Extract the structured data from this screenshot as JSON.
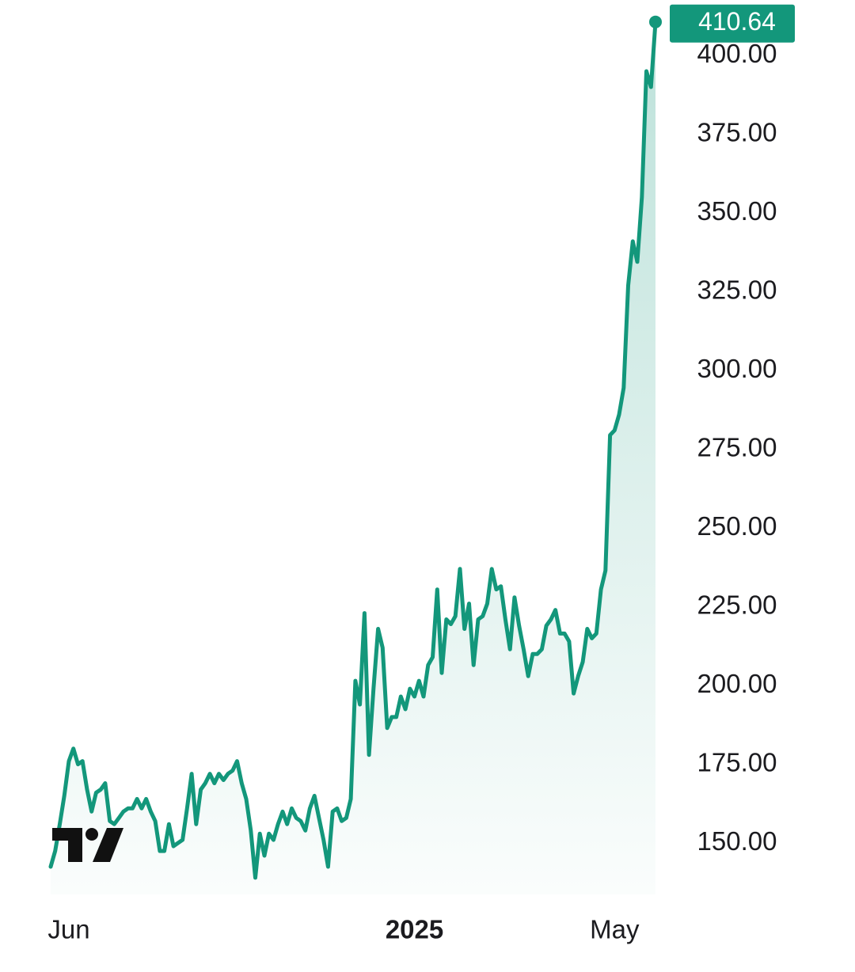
{
  "chart_data": {
    "type": "line",
    "categories": [
      null,
      null,
      null,
      null,
      "Jun",
      null,
      null,
      null,
      null,
      null,
      null,
      null,
      null,
      null,
      null,
      null,
      null,
      null,
      null,
      null,
      null,
      null,
      null,
      null,
      null,
      null,
      null,
      null,
      null,
      null,
      null,
      null,
      null,
      null,
      null,
      null,
      null,
      null,
      null,
      null,
      null,
      null,
      null,
      null,
      null,
      null,
      null,
      null,
      null,
      null,
      null,
      null,
      null,
      null,
      null,
      null,
      null,
      null,
      null,
      null,
      null,
      null,
      null,
      null,
      null,
      null,
      null,
      null,
      null,
      null,
      null,
      null,
      null,
      null,
      null,
      null,
      null,
      null,
      null,
      null,
      "2025",
      null,
      null,
      null,
      null,
      null,
      null,
      null,
      null,
      null,
      null,
      null,
      null,
      null,
      null,
      null,
      null,
      null,
      null,
      null,
      null,
      null,
      null,
      null,
      null,
      null,
      null,
      null,
      null,
      null,
      null,
      null,
      null,
      null,
      null,
      null,
      null,
      null,
      null,
      null,
      null,
      null,
      null,
      null,
      "May",
      null,
      null,
      null,
      null,
      null,
      null,
      null,
      null,
      null
    ],
    "series": [
      {
        "color": "#13977b",
        "values": [
          142.5,
          147.5,
          156,
          165,
          176,
          180,
          175,
          176,
          167,
          160,
          166,
          167,
          169,
          157,
          156,
          158,
          160,
          161,
          161,
          164,
          161,
          164,
          160,
          157,
          147.5,
          147.5,
          156,
          149,
          150,
          151,
          161,
          172,
          156,
          167,
          169,
          172,
          169,
          172,
          170,
          172,
          173,
          176,
          169,
          164,
          154,
          139,
          153,
          146,
          153,
          151,
          156,
          160,
          156,
          161,
          158,
          157,
          154,
          161,
          165,
          158,
          151,
          142.5,
          160,
          161,
          157,
          158,
          164,
          201.5,
          194,
          223,
          178,
          199,
          218,
          212,
          186.5,
          190,
          190,
          196.5,
          192.5,
          199,
          196.5,
          201.5,
          196.5,
          206.5,
          209,
          230.5,
          204,
          221,
          219.5,
          222,
          237,
          218,
          226,
          206.5,
          221,
          222,
          226,
          237,
          230.5,
          231.5,
          221,
          211.5,
          228,
          219,
          211.5,
          203,
          210,
          210,
          211.5,
          219,
          221,
          224,
          216.5,
          216.5,
          214,
          197.5,
          203,
          207.5,
          218,
          215,
          216.5,
          230.5,
          236.5,
          279.5,
          281,
          286,
          294.5,
          327,
          341,
          334.5,
          355,
          395,
          390,
          410.64
        ]
      }
    ],
    "ylim": [
      133.7,
      417.6
    ],
    "yticks": [
      {
        "value": 150,
        "label": "150.00"
      },
      {
        "value": 175,
        "label": "175.00"
      },
      {
        "value": 200,
        "label": "200.00"
      },
      {
        "value": 225,
        "label": "225.00"
      },
      {
        "value": 250,
        "label": "250.00"
      },
      {
        "value": 275,
        "label": "275.00"
      },
      {
        "value": 300,
        "label": "300.00"
      },
      {
        "value": 325,
        "label": "325.00"
      },
      {
        "value": 350,
        "label": "350.00"
      },
      {
        "value": 375,
        "label": "375.00"
      },
      {
        "value": 400,
        "label": "400.00"
      }
    ]
  }
}
